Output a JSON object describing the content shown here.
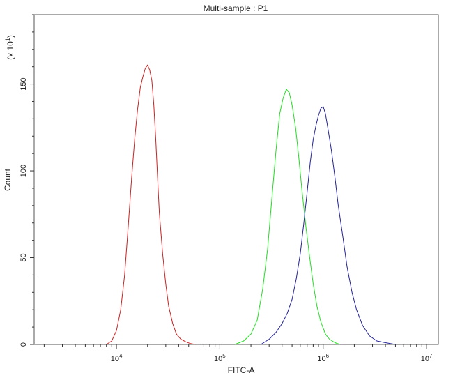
{
  "chart_data": {
    "type": "line",
    "title": "Multi-sample : P1",
    "xlabel": "FITC-A",
    "ylabel": "Count",
    "y_multiplier": "(x 10",
    "y_multiplier_exp": "1",
    "y_multiplier_close": ")",
    "x_scale": "log",
    "xlim": [
      1600,
      13000000
    ],
    "ylim": [
      0,
      190
    ],
    "x_ticks": [
      {
        "value": 10000,
        "base": "10",
        "exp": "4"
      },
      {
        "value": 100000,
        "base": "10",
        "exp": "5"
      },
      {
        "value": 1000000,
        "base": "10",
        "exp": "6"
      },
      {
        "value": 10000000,
        "base": "10",
        "exp": "7"
      }
    ],
    "y_ticks": [
      0,
      50,
      100,
      150
    ],
    "grid": false,
    "legend": "none",
    "series": [
      {
        "color": "#cc2222",
        "x": [
          8000,
          9000,
          10000,
          11000,
          12000,
          13000,
          14000,
          15000,
          16000,
          17000,
          18000,
          19000,
          20000,
          21000,
          22000,
          23000,
          24000,
          25000,
          26000,
          28000,
          30000,
          32000,
          35000,
          38000,
          42000,
          47000,
          52000,
          58000
        ],
        "y": [
          0,
          2,
          8,
          20,
          40,
          68,
          95,
          118,
          135,
          148,
          154,
          159,
          161,
          158,
          152,
          138,
          118,
          96,
          76,
          52,
          35,
          22,
          12,
          6,
          3,
          1.5,
          0.5,
          0
        ]
      },
      {
        "color": "#22dd22",
        "x": [
          140000,
          170000,
          200000,
          230000,
          260000,
          290000,
          320000,
          350000,
          380000,
          410000,
          440000,
          470000,
          500000,
          540000,
          580000,
          620000,
          680000,
          740000,
          800000,
          870000,
          950000,
          1050000,
          1150000,
          1300000,
          1450000
        ],
        "y": [
          0,
          2,
          6,
          14,
          32,
          55,
          85,
          112,
          133,
          142,
          147,
          145,
          138,
          125,
          108,
          90,
          68,
          50,
          35,
          22,
          13,
          6,
          3,
          1,
          0
        ]
      },
      {
        "color": "#222299",
        "x": [
          250000,
          300000,
          350000,
          400000,
          450000,
          500000,
          550000,
          600000,
          650000,
          700000,
          750000,
          800000,
          850000,
          900000,
          950000,
          1000000,
          1050000,
          1100000,
          1200000,
          1300000,
          1400000,
          1550000,
          1700000,
          1900000,
          2100000,
          2400000,
          2800000,
          3300000,
          4000000,
          5000000
        ],
        "y": [
          0,
          3,
          7,
          12,
          18,
          26,
          38,
          52,
          70,
          88,
          105,
          118,
          126,
          132,
          136,
          137,
          133,
          126,
          112,
          96,
          80,
          62,
          45,
          30,
          20,
          11,
          5,
          2,
          1,
          0
        ]
      }
    ]
  }
}
